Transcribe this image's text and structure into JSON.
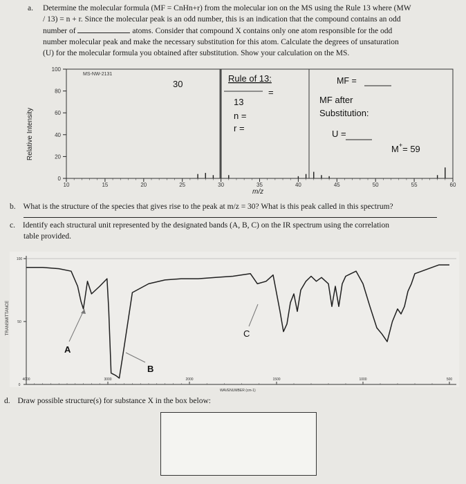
{
  "question_a": {
    "label": "a.",
    "line1": "Determine the molecular formula (MF = CnHn+r) from the molecular ion on the MS using the Rule 13 where (MW",
    "line2": "/ 13) = n + r. Since the molecular peak is an odd number, this is an indication that the compound contains an odd",
    "line3_pre": "number of",
    "line3_post": "atoms. Consider that compound X contains only one atom responsible for the odd",
    "line4": "number molecular peak and make the necessary substitution for this atom. Calculate the degrees of unsaturation",
    "line5": "(U) for the molecular formula you obtained after substitution. Show your calculation on the MS."
  },
  "ms_spectrum": {
    "id_label": "MS-NW-2131",
    "y_axis_label": "Relative Intensity",
    "y_ticks": [
      "100",
      "80",
      "60",
      "40",
      "20",
      "0"
    ],
    "x_ticks": [
      "10",
      "15",
      "20",
      "25",
      "30",
      "35",
      "40",
      "45",
      "50",
      "55",
      "60"
    ],
    "x_axis_label": "m/z",
    "handwritten": {
      "peak_30": "30",
      "rule_title": "Rule of 13:",
      "eq": "=",
      "thirteen": "13",
      "n_eq": "n =",
      "r_eq": "r =",
      "mf_eq": "MF =",
      "mf_after1": "MF after",
      "mf_after2": "Substitution:",
      "u_eq": "U =",
      "m_plus": "M",
      "m_plus_sup": "+",
      "m_plus_val": "= 59"
    }
  },
  "question_b": {
    "label": "b.",
    "text": "What is the structure of the species that gives rise to the peak at m/z = 30? What is this peak called in this spectrum?"
  },
  "question_c": {
    "label": "c.",
    "line1": "Identify each structural unit represented by the designated bands (A, B, C) on the IR spectrum using the correlation",
    "line2": "table provided."
  },
  "ir_spectrum": {
    "y_axis_label": "TRANSMITTANCE",
    "y_ticks": [
      "100",
      "50",
      "0"
    ],
    "x_ticks": [
      "4000",
      "3000",
      "2000",
      "1500",
      "1000",
      "500"
    ],
    "x_axis_label": "WAVENUMBER (cm-1)",
    "band_labels": [
      "A",
      "B",
      "C"
    ]
  },
  "question_d": {
    "label": "d.",
    "text": "Draw possible structure(s) for substance X in the box below:"
  },
  "chart_data": [
    {
      "type": "bar",
      "title": "",
      "xlabel": "m/z",
      "ylabel": "Relative Intensity",
      "xlim": [
        10,
        60
      ],
      "ylim": [
        0,
        100
      ],
      "x": [
        27,
        28,
        29,
        30,
        31,
        40,
        41,
        42,
        43,
        44,
        58,
        59
      ],
      "values": [
        4,
        5,
        3,
        100,
        3,
        2,
        4,
        6,
        3,
        2,
        3,
        10
      ]
    },
    {
      "type": "line",
      "title": "",
      "xlabel": "WAVENUMBER (cm-1)",
      "ylabel": "TRANSMITTANCE",
      "ylim": [
        0,
        100
      ],
      "x": [
        4000,
        3800,
        3600,
        3450,
        3370,
        3330,
        3300,
        3250,
        3200,
        3100,
        3010,
        2990,
        2960,
        2930,
        2900,
        2860,
        2800,
        2700,
        2500,
        2300,
        2100,
        1950,
        1850,
        1750,
        1650,
        1610,
        1560,
        1520,
        1480,
        1460,
        1440,
        1420,
        1400,
        1380,
        1360,
        1330,
        1300,
        1270,
        1240,
        1200,
        1180,
        1160,
        1140,
        1120,
        1100,
        1070,
        1040,
        1000,
        960,
        920,
        890,
        860,
        830,
        800,
        780,
        760,
        740,
        720,
        700,
        660,
        600,
        560,
        500
      ],
      "values": [
        93,
        93,
        92,
        90,
        78,
        66,
        60,
        82,
        72,
        78,
        84,
        60,
        9,
        8,
        7,
        5,
        30,
        73,
        80,
        83,
        84,
        84,
        85,
        86,
        88,
        80,
        82,
        87,
        58,
        42,
        48,
        65,
        72,
        58,
        75,
        82,
        86,
        82,
        85,
        80,
        62,
        78,
        62,
        80,
        86,
        88,
        90,
        80,
        62,
        45,
        40,
        34,
        50,
        60,
        56,
        62,
        74,
        80,
        88,
        90,
        93,
        95,
        95
      ]
    }
  ]
}
